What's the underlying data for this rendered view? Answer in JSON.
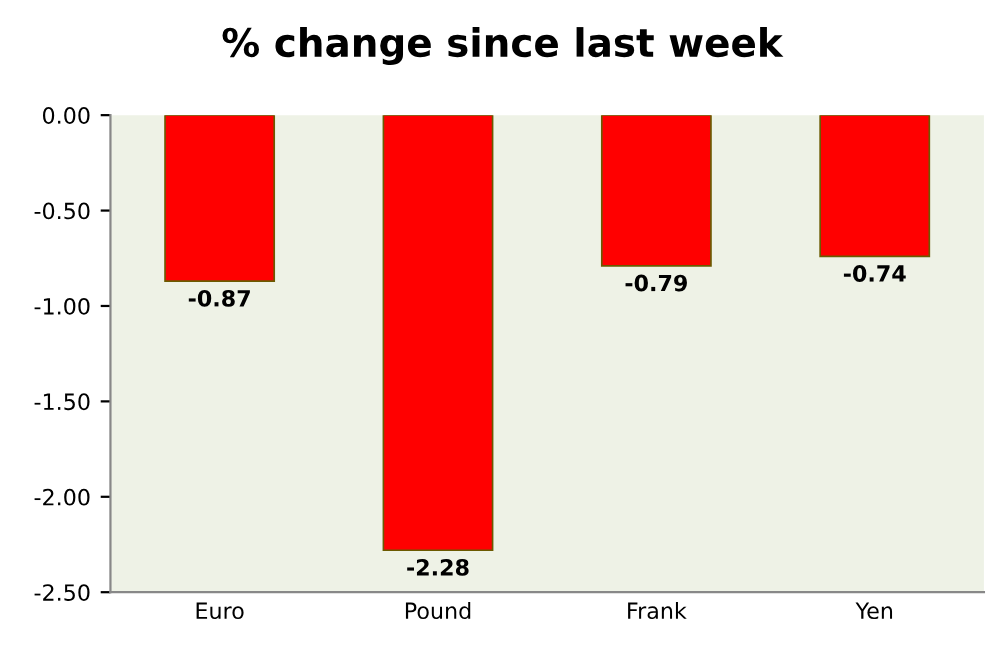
{
  "chart_data": {
    "type": "bar",
    "title": "% change since last week",
    "categories": [
      "Euro",
      "Pound",
      "Frank",
      "Yen"
    ],
    "values": [
      -0.87,
      -2.28,
      -0.79,
      -0.74
    ],
    "color": "#ff0000",
    "ylim": [
      -2.5,
      0
    ],
    "yticks": [
      {
        "value": 0,
        "label": "0.00"
      },
      {
        "value": -0.5,
        "label": "-0.50"
      },
      {
        "value": -1.0,
        "label": "-1.00"
      },
      {
        "value": -1.5,
        "label": "-1.50"
      },
      {
        "value": -2.0,
        "label": "-2.00"
      },
      {
        "value": -2.5,
        "label": "-2.50"
      }
    ],
    "data_labels": true,
    "grid": false,
    "legend": false
  }
}
